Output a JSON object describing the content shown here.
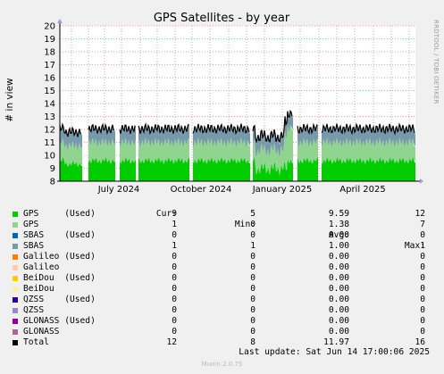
{
  "chart_data": {
    "type": "area",
    "title": "GPS Satellites - by year",
    "ylabel": "# in view",
    "ylim": [
      8,
      20
    ],
    "y_ticks": [
      8,
      9,
      10,
      11,
      12,
      13,
      14,
      15,
      16,
      17,
      18,
      19,
      20
    ],
    "x_tick_labels": [
      "July 2024",
      "October 2024",
      "January 2025",
      "April 2025"
    ],
    "grid": true,
    "side_label": "RRDTOOL / TOBI OETIKER",
    "stacking": [
      "GPS (Used)",
      "GPS",
      "SBAS",
      "Total"
    ],
    "approx_levels": {
      "gps_used_typical": 9.6,
      "gps_typical": 1.4,
      "sbas_typical": 1,
      "total_typical": 12
    },
    "gaps": [
      "early June 2024",
      "mid-June 2024",
      "late July 2024",
      "late September 2024",
      "mid-January 2025",
      "February 2025",
      "early March 2025"
    ],
    "peak": {
      "x": "mid-January 2025",
      "total": 12.5
    }
  },
  "legend": {
    "headers": {
      "cur": "Cur:",
      "min": "Min:",
      "avg": "Avg:",
      "max": "Max:"
    },
    "rows": [
      {
        "name": "GPS     (Used)",
        "color": "#00cc00",
        "cur": "9",
        "min": "5",
        "avg": "9.59",
        "max": "12"
      },
      {
        "name": "GPS",
        "color": "#8fd48f",
        "cur": "1",
        "min": "0",
        "avg": "1.38",
        "max": "7"
      },
      {
        "name": "SBAS    (Used)",
        "color": "#0066b3",
        "cur": "0",
        "min": "0",
        "avg": "0.00",
        "max": "0"
      },
      {
        "name": "SBAS",
        "color": "#7799aa",
        "cur": "1",
        "min": "1",
        "avg": "1.00",
        "max": "1"
      },
      {
        "name": "Galileo (Used)",
        "color": "#ff8000",
        "cur": "0",
        "min": "0",
        "avg": "0.00",
        "max": "0"
      },
      {
        "name": "Galileo",
        "color": "#ffccaa",
        "cur": "0",
        "min": "0",
        "avg": "0.00",
        "max": "0"
      },
      {
        "name": "BeiDou  (Used)",
        "color": "#ffcc00",
        "cur": "0",
        "min": "0",
        "avg": "0.00",
        "max": "0"
      },
      {
        "name": "BeiDou",
        "color": "#ffeeaa",
        "cur": "0",
        "min": "0",
        "avg": "0.00",
        "max": "0"
      },
      {
        "name": "QZSS    (Used)",
        "color": "#330099",
        "cur": "0",
        "min": "0",
        "avg": "0.00",
        "max": "0"
      },
      {
        "name": "QZSS",
        "color": "#9988cc",
        "cur": "0",
        "min": "0",
        "avg": "0.00",
        "max": "0"
      },
      {
        "name": "GLONASS (Used)",
        "color": "#990099",
        "cur": "0",
        "min": "0",
        "avg": "0.00",
        "max": "0"
      },
      {
        "name": "GLONASS",
        "color": "#aa6699",
        "cur": "0",
        "min": "0",
        "avg": "0.00",
        "max": "0"
      },
      {
        "name": "Total",
        "color": "#000000",
        "cur": "12",
        "min": "8",
        "avg": "11.97",
        "max": "16"
      }
    ]
  },
  "last_update": "Last update: Sat Jun 14 17:00:06 2025",
  "footer": "Munin 2.0.75"
}
